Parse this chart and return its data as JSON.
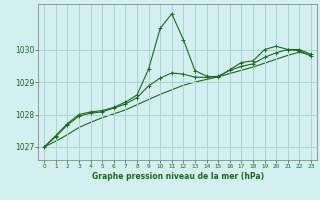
{
  "title": "Graphe pression niveau de la mer (hPa)",
  "background_color": "#d4efef",
  "grid_color": "#aad4d4",
  "line_color": "#1a6b1a",
  "xlim": [
    -0.5,
    23.5
  ],
  "ylim": [
    1026.6,
    1031.4
  ],
  "yticks": [
    1027,
    1028,
    1029,
    1030
  ],
  "xticks": [
    0,
    1,
    2,
    3,
    4,
    5,
    6,
    7,
    8,
    9,
    10,
    11,
    12,
    13,
    14,
    15,
    16,
    17,
    18,
    19,
    20,
    21,
    22,
    23
  ],
  "s1_x": [
    0,
    1,
    2,
    3,
    4,
    5,
    6,
    7,
    8,
    9,
    10,
    11,
    12,
    13,
    14,
    15,
    16,
    17,
    18,
    19,
    20,
    21,
    22,
    23
  ],
  "s1_y": [
    1027.0,
    1027.35,
    1027.72,
    1028.0,
    1028.08,
    1028.12,
    1028.22,
    1028.38,
    1028.6,
    1029.4,
    1030.65,
    1031.1,
    1030.3,
    1029.35,
    1029.18,
    1029.15,
    1029.38,
    1029.6,
    1029.65,
    1030.0,
    1030.1,
    1030.0,
    1030.0,
    1029.85
  ],
  "s2_x": [
    0,
    1,
    2,
    3,
    4,
    5,
    6,
    7,
    8,
    9,
    10,
    11,
    12,
    13,
    14,
    15,
    16,
    17,
    18,
    19,
    20,
    21,
    22,
    23
  ],
  "s2_y": [
    1027.0,
    1027.32,
    1027.68,
    1027.95,
    1028.04,
    1028.08,
    1028.2,
    1028.32,
    1028.52,
    1028.88,
    1029.12,
    1029.28,
    1029.24,
    1029.15,
    1029.14,
    1029.18,
    1029.36,
    1029.48,
    1029.56,
    1029.76,
    1029.9,
    1030.0,
    1029.96,
    1029.8
  ],
  "s3_x": [
    0,
    1,
    2,
    3,
    4,
    5,
    6,
    7,
    8,
    9,
    10,
    11,
    12,
    13,
    14,
    15,
    16,
    17,
    18,
    19,
    20,
    21,
    22,
    23
  ],
  "s3_y": [
    1027.0,
    1027.18,
    1027.38,
    1027.6,
    1027.76,
    1027.9,
    1028.02,
    1028.14,
    1028.3,
    1028.46,
    1028.62,
    1028.76,
    1028.9,
    1029.0,
    1029.08,
    1029.16,
    1029.26,
    1029.36,
    1029.46,
    1029.58,
    1029.7,
    1029.82,
    1029.92,
    1029.82
  ]
}
